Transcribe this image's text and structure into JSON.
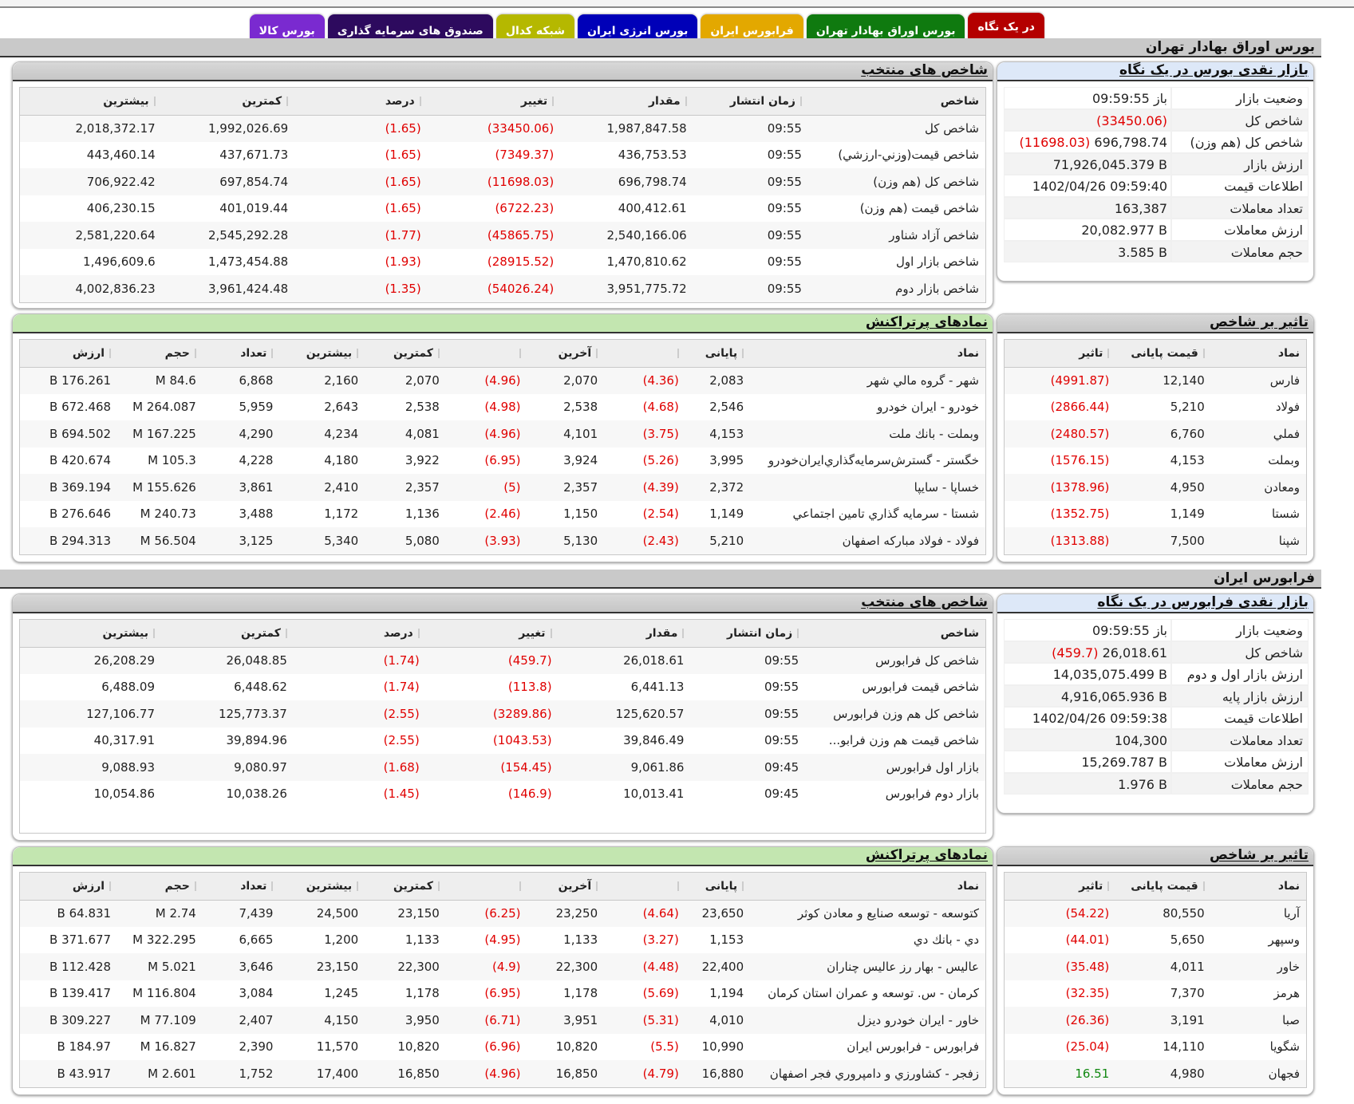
{
  "tabs": [
    {
      "label": "در یک نگاه",
      "color": "#b40000",
      "active": true
    },
    {
      "label": "بورس اوراق بهادار تهران",
      "color": "#0f7a0f",
      "active": false
    },
    {
      "label": "فرابورس ایران",
      "color": "#e3a800",
      "active": false
    },
    {
      "label": "بورس انرژی ایران",
      "color": "#0000b8",
      "active": false
    },
    {
      "label": "شبکه کدال",
      "color": "#b5b800",
      "active": false
    },
    {
      "label": "صندوق های سرمایه گذاری",
      "color": "#2d0a5e",
      "active": false
    },
    {
      "label": "بورس کالا",
      "color": "#7a2ad0",
      "active": false
    }
  ],
  "tse": {
    "section_title": "بورس اوراق بهادار تهران",
    "summary": {
      "title": "بازار نقدی بورس در یک نگاه",
      "rows": [
        {
          "label": "وضعیت بازار",
          "value": "باز 09:59:55",
          "change": ""
        },
        {
          "label": "شاخص کل",
          "value": "1,987,847.58",
          "change": "(33450.06)"
        },
        {
          "label": "شاخص کل (هم وزن)",
          "value": "696,798.74",
          "change": "(11698.03)"
        },
        {
          "label": "ارزش بازار",
          "value": "71,926,045.379 B",
          "change": ""
        },
        {
          "label": "اطلاعات قیمت",
          "value": "1402/04/26 09:59:40",
          "change": ""
        },
        {
          "label": "تعداد معاملات",
          "value": "163,387",
          "change": ""
        },
        {
          "label": "ارزش معاملات",
          "value": "20,082.977 B",
          "change": ""
        },
        {
          "label": "حجم معاملات",
          "value": "3.585 B",
          "change": ""
        }
      ]
    },
    "indices": {
      "title": "شاخص های منتخب",
      "columns": [
        "شاخص",
        "زمان انتشار",
        "مقدار",
        "تغییر",
        "درصد",
        "کمترین",
        "بیشترین"
      ],
      "rows": [
        [
          "شاخص کل",
          "09:55",
          "1,987,847.58",
          "(33450.06)",
          "(1.65)",
          "1,992,026.69",
          "2,018,372.17"
        ],
        [
          "شاخص قیمت(وزني-ارزشي)",
          "09:55",
          "436,753.53",
          "(7349.37)",
          "(1.65)",
          "437,671.73",
          "443,460.14"
        ],
        [
          "شاخص کل (هم وزن)",
          "09:55",
          "696,798.74",
          "(11698.03)",
          "(1.65)",
          "697,854.74",
          "706,922.42"
        ],
        [
          "شاخص قیمت (هم وزن)",
          "09:55",
          "400,412.61",
          "(6722.23)",
          "(1.65)",
          "401,019.44",
          "406,230.15"
        ],
        [
          "شاخص آزاد شناور",
          "09:55",
          "2,540,166.06",
          "(45865.75)",
          "(1.77)",
          "2,545,292.28",
          "2,581,220.64"
        ],
        [
          "شاخص بازار اول",
          "09:55",
          "1,470,810.62",
          "(28915.52)",
          "(1.93)",
          "1,473,454.88",
          "1,496,609.6"
        ],
        [
          "شاخص بازار دوم",
          "09:55",
          "3,951,775.72",
          "(54026.24)",
          "(1.35)",
          "3,961,424.48",
          "4,002,836.23"
        ]
      ]
    },
    "impact": {
      "title": "تاثیر بر شاخص",
      "columns": [
        "نماد",
        "قیمت پایانی",
        "تاثیر"
      ],
      "rows": [
        [
          "فارس",
          "12,140",
          "(4991.87)"
        ],
        [
          "فولاد",
          "5,210",
          "(2866.44)"
        ],
        [
          "فملي",
          "6,760",
          "(2480.57)"
        ],
        [
          "وبملت",
          "4,153",
          "(1576.15)"
        ],
        [
          "ومعادن",
          "4,950",
          "(1378.96)"
        ],
        [
          "شستا",
          "1,149",
          "(1352.75)"
        ],
        [
          "شپنا",
          "7,500",
          "(1313.88)"
        ]
      ]
    },
    "active": {
      "title": "نمادهای پرتراکنش",
      "columns": [
        "نماد",
        "پایانی",
        "",
        "آخرین",
        "",
        "کمترین",
        "بیشترین",
        "تعداد",
        "حجم",
        "ارزش"
      ],
      "rows": [
        [
          "شهر - گروه مالي شهر",
          "2,083",
          "(4.36)",
          "2,070",
          "(4.96)",
          "2,070",
          "2,160",
          "6,868",
          "84.6 M",
          "176.261 B"
        ],
        [
          "خودرو - ايران خودرو",
          "2,546",
          "(4.68)",
          "2,538",
          "(4.98)",
          "2,538",
          "2,643",
          "5,959",
          "264.087 M",
          "672.468 B"
        ],
        [
          "وبملت - بانك ملت",
          "4,153",
          "(3.75)",
          "4,101",
          "(4.96)",
          "4,081",
          "4,234",
          "4,290",
          "167.225 M",
          "694.502 B"
        ],
        [
          "خگستر - گسترش‌سرمايه‌گذاري‌ايران‌خودرو",
          "3,995",
          "(5.26)",
          "3,924",
          "(6.95)",
          "3,922",
          "4,180",
          "4,228",
          "105.3 M",
          "420.674 B"
        ],
        [
          "خساپا - سايپا",
          "2,372",
          "(4.39)",
          "2,357",
          "(5)",
          "2,357",
          "2,410",
          "3,861",
          "155.626 M",
          "369.194 B"
        ],
        [
          "شستا - سرمايه گذاري تامين اجتماعي",
          "1,149",
          "(2.54)",
          "1,150",
          "(2.46)",
          "1,136",
          "1,172",
          "3,488",
          "240.73 M",
          "276.646 B"
        ],
        [
          "فولاد - فولاد مباركه اصفهان",
          "5,210",
          "(2.43)",
          "5,130",
          "(3.93)",
          "5,080",
          "5,340",
          "3,125",
          "56.504 M",
          "294.313 B"
        ]
      ]
    }
  },
  "ifb": {
    "section_title": "فرابورس ایران",
    "summary": {
      "title": "بازار نقدی فرابورس در یک نگاه",
      "rows": [
        {
          "label": "وضعیت بازار",
          "value": "باز 09:59:55",
          "change": ""
        },
        {
          "label": "شاخص کل",
          "value": "26,018.61",
          "change": "(459.7)"
        },
        {
          "label": "ارزش بازار اول و دوم",
          "value": "14,035,075.499 B",
          "change": ""
        },
        {
          "label": "ارزش بازار پایه",
          "value": "4,916,065.936 B",
          "change": ""
        },
        {
          "label": "اطلاعات قیمت",
          "value": "1402/04/26 09:59:38",
          "change": ""
        },
        {
          "label": "تعداد معاملات",
          "value": "104,300",
          "change": ""
        },
        {
          "label": "ارزش معاملات",
          "value": "15,269.787 B",
          "change": ""
        },
        {
          "label": "حجم معاملات",
          "value": "1.976 B",
          "change": ""
        }
      ]
    },
    "indices": {
      "title": "شاخص های منتخب",
      "columns": [
        "شاخص",
        "زمان انتشار",
        "مقدار",
        "تغییر",
        "درصد",
        "کمترین",
        "بیشترین"
      ],
      "rows": [
        [
          "شاخص کل فرابورس",
          "09:55",
          "26,018.61",
          "(459.7)",
          "(1.74)",
          "26,048.85",
          "26,208.29"
        ],
        [
          "شاخص قیمت فرابورس",
          "09:55",
          "6,441.13",
          "(113.8)",
          "(1.74)",
          "6,448.62",
          "6,488.09"
        ],
        [
          "شاخص کل هم وزن فرابورس",
          "09:55",
          "125,620.57",
          "(3289.86)",
          "(2.55)",
          "125,773.37",
          "127,106.77"
        ],
        [
          "شاخص قیمت هم وزن فرابو...",
          "09:55",
          "39,846.49",
          "(1043.53)",
          "(2.55)",
          "39,894.96",
          "40,317.91"
        ],
        [
          "بازار اول فرابورس",
          "09:45",
          "9,061.86",
          "(154.45)",
          "(1.68)",
          "9,080.97",
          "9,088.93"
        ],
        [
          "بازار دوم فرابورس",
          "09:45",
          "10,013.41",
          "(146.9)",
          "(1.45)",
          "10,038.26",
          "10,054.86"
        ]
      ]
    },
    "impact": {
      "title": "تاثیر بر شاخص",
      "columns": [
        "نماد",
        "قیمت پایانی",
        "تاثیر"
      ],
      "rows": [
        [
          "آريا",
          "80,550",
          "(54.22)"
        ],
        [
          "وسپهر",
          "5,650",
          "(44.01)"
        ],
        [
          "خاور",
          "4,011",
          "(35.48)"
        ],
        [
          "هرمز",
          "7,370",
          "(32.35)"
        ],
        [
          "صبا",
          "3,191",
          "(26.36)"
        ],
        [
          "شگويا",
          "14,110",
          "(25.04)"
        ],
        [
          "فجهان",
          "4,980",
          "16.51"
        ]
      ]
    },
    "active": {
      "title": "نمادهای پرتراکنش",
      "columns": [
        "نماد",
        "پایانی",
        "",
        "آخرین",
        "",
        "کمترین",
        "بیشترین",
        "تعداد",
        "حجم",
        "ارزش"
      ],
      "rows": [
        [
          "كتوسعه - توسعه صنايع و معادن كوثر",
          "23,650",
          "(4.64)",
          "23,250",
          "(6.25)",
          "23,150",
          "24,500",
          "7,439",
          "2.74 M",
          "64.831 B"
        ],
        [
          "دي - بانك دي",
          "1,153",
          "(3.27)",
          "1,133",
          "(4.95)",
          "1,133",
          "1,200",
          "6,665",
          "322.295 M",
          "371.677 B"
        ],
        [
          "عاليس - بهار رز عاليس چناران",
          "22,400",
          "(4.48)",
          "22,300",
          "(4.9)",
          "22,300",
          "23,150",
          "3,646",
          "5.021 M",
          "112.428 B"
        ],
        [
          "كرمان - س. توسعه و عمران استان كرمان",
          "1,194",
          "(5.69)",
          "1,178",
          "(6.95)",
          "1,178",
          "1,245",
          "3,084",
          "116.804 M",
          "139.417 B"
        ],
        [
          "خاور - ايران خودرو ديزل",
          "4,010",
          "(5.31)",
          "3,951",
          "(6.71)",
          "3,950",
          "4,150",
          "2,407",
          "77.109 M",
          "309.227 B"
        ],
        [
          "فرابورس - فرابورس ايران",
          "10,990",
          "(5.5)",
          "10,820",
          "(6.96)",
          "10,820",
          "11,570",
          "2,390",
          "16.827 M",
          "184.97 B"
        ],
        [
          "زفجر - كشاورزي و دامپروري فجر اصفهان",
          "16,880",
          "(4.79)",
          "16,850",
          "(4.96)",
          "16,850",
          "17,400",
          "1,752",
          "2.601 M",
          "43.917 B"
        ]
      ]
    }
  },
  "colors": {
    "negative": "#e00000",
    "positive": "#118811",
    "header_gray": "#c9c9c9",
    "header_blue": "#dde8f8",
    "header_green": "#c3e6b0"
  }
}
